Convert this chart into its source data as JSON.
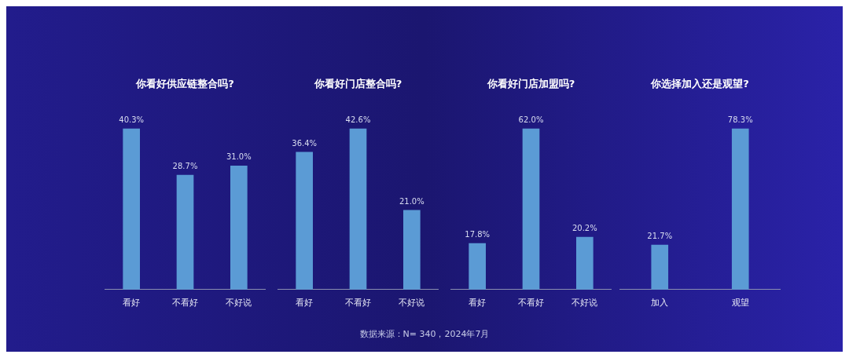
{
  "chart_data": [
    {
      "type": "bar",
      "title": "你看好供应链整合吗?",
      "categories": [
        "看好",
        "不看好",
        "不好说"
      ],
      "values": [
        40.3,
        28.7,
        31.0
      ],
      "value_labels": [
        "40.3%",
        "28.7%",
        "31.0%"
      ],
      "color": "#5b9bd5",
      "annotations": [
        "数据来源：N= 340，2024年7月"
      ]
    },
    {
      "type": "bar",
      "title": "你看好门店整合吗?",
      "categories": [
        "看好",
        "不看好",
        "不好说"
      ],
      "values": [
        36.4,
        42.6,
        21.0
      ],
      "value_labels": [
        "36.4%",
        "42.6%",
        "21.0%"
      ],
      "color": "#5b9bd5"
    },
    {
      "type": "bar",
      "title": "你看好门店加盟吗?",
      "categories": [
        "看好",
        "不看好",
        "不好说"
      ],
      "values": [
        17.8,
        62.0,
        20.2
      ],
      "value_labels": [
        "17.8%",
        "62.0%",
        "20.2%"
      ],
      "color": "#5b9bd5"
    },
    {
      "type": "bar",
      "title": "你选择加入还是观望?",
      "categories": [
        "加入",
        "观望"
      ],
      "values": [
        21.7,
        78.3
      ],
      "value_labels": [
        "21.7%",
        "78.3%"
      ],
      "color": "#5b9bd5"
    }
  ]
}
